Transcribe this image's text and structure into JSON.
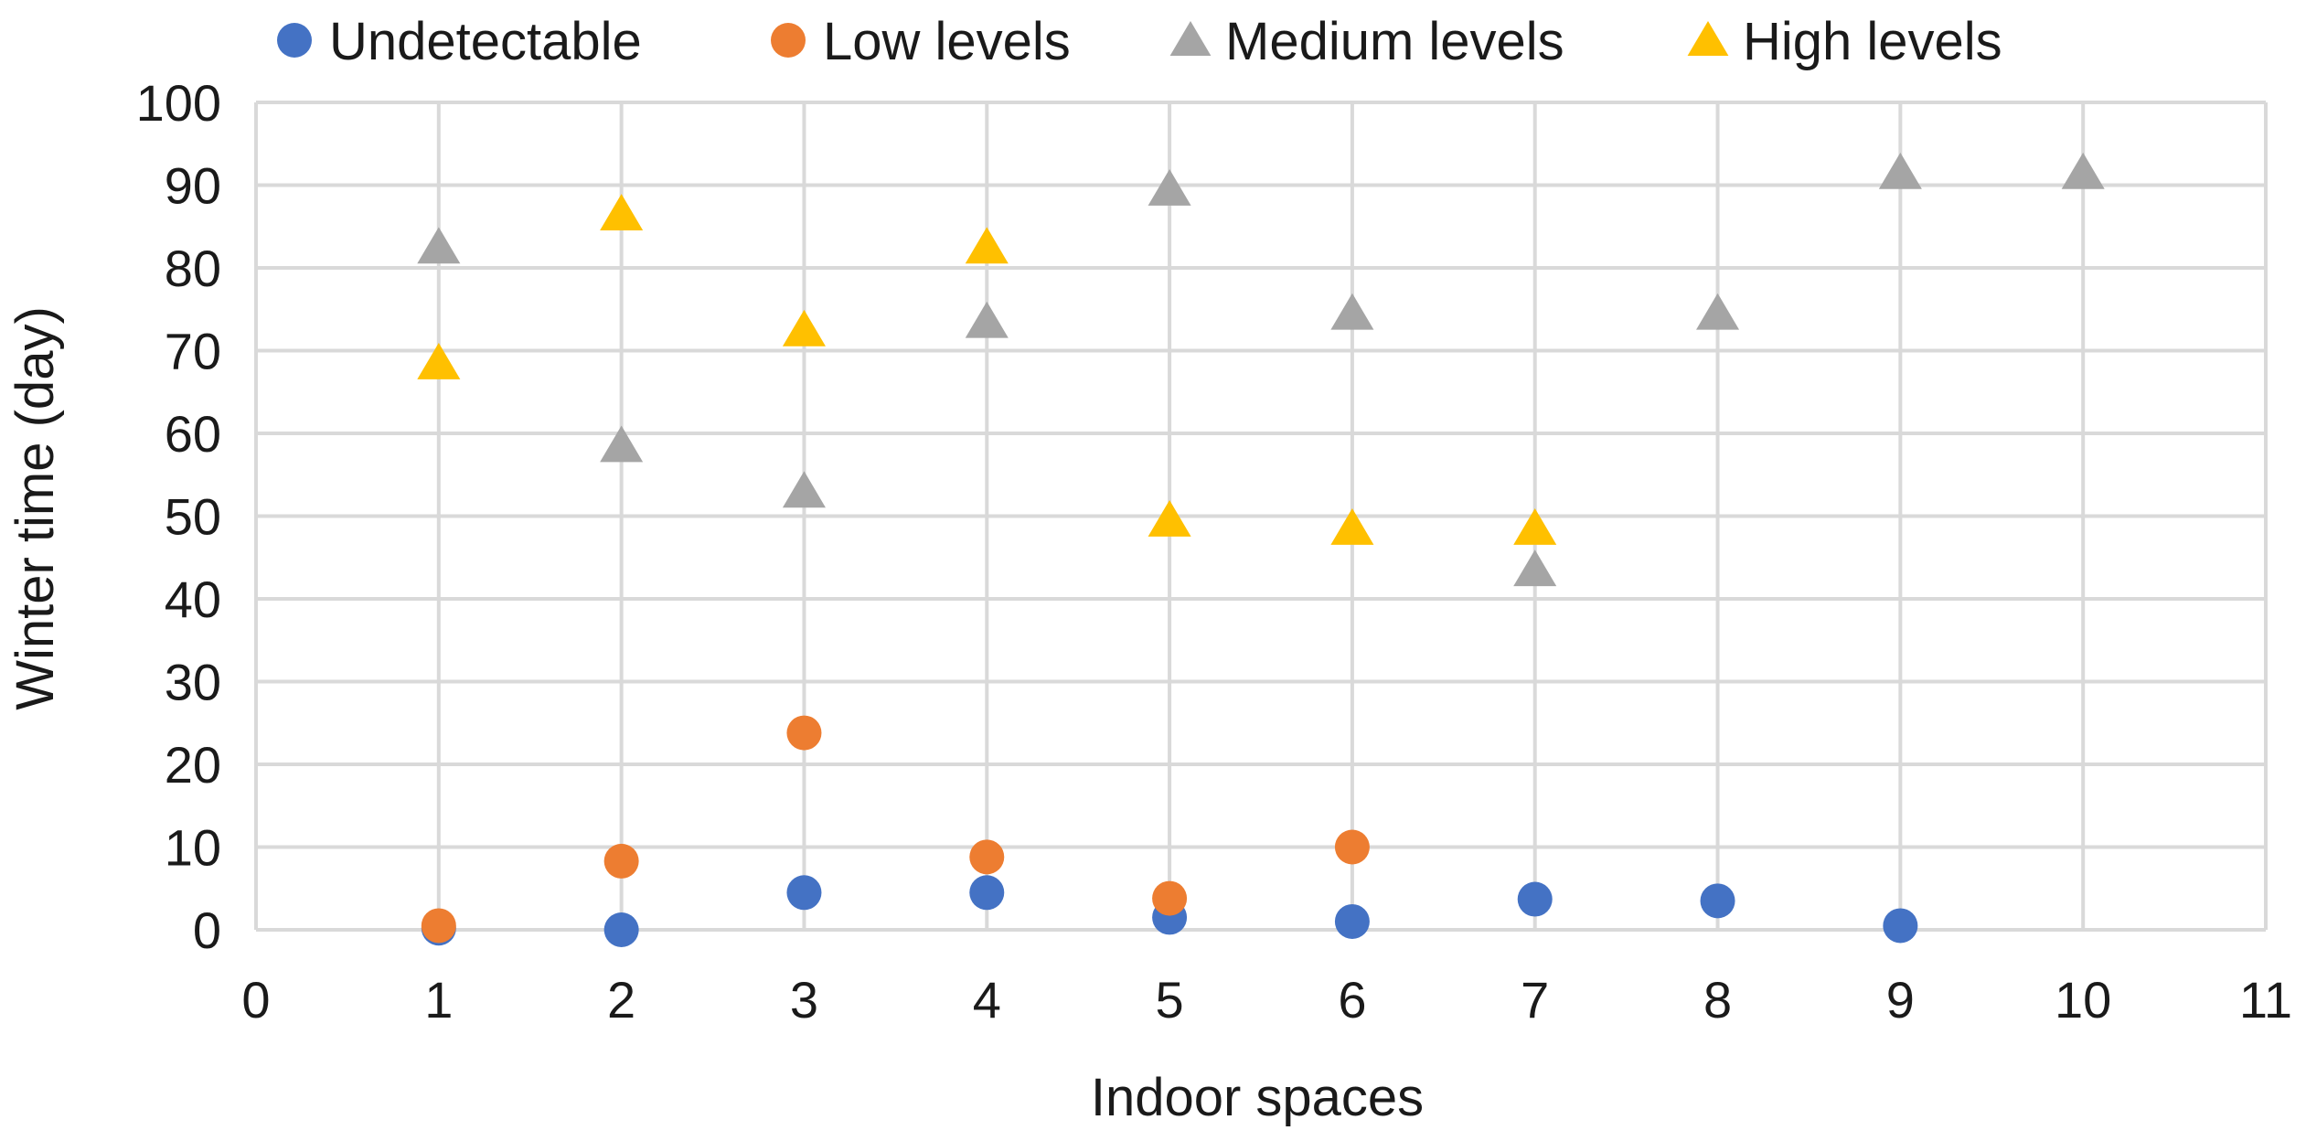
{
  "chart_data": {
    "type": "scatter",
    "title": "",
    "xlabel": "Indoor spaces",
    "ylabel": "Winter time (day)",
    "xlim": [
      0,
      11
    ],
    "ylim": [
      0,
      100
    ],
    "x_ticks": [
      0,
      1,
      2,
      3,
      4,
      5,
      6,
      7,
      8,
      9,
      10,
      11
    ],
    "y_ticks": [
      0,
      10,
      20,
      30,
      40,
      50,
      60,
      70,
      80,
      90,
      100
    ],
    "grid": "vertical and horizontal",
    "legend_position": "top",
    "series": [
      {
        "name": "Undetectable",
        "marker": "circle",
        "color": "#4472C4",
        "points": [
          [
            1,
            0.2
          ],
          [
            2,
            0
          ],
          [
            3,
            4.5
          ],
          [
            4,
            4.5
          ],
          [
            5,
            1.5
          ],
          [
            6,
            1
          ],
          [
            7,
            3.7
          ],
          [
            8,
            3.5
          ],
          [
            9,
            0.5
          ]
        ]
      },
      {
        "name": "Low levels",
        "marker": "circle",
        "color": "#ED7D31",
        "points": [
          [
            1,
            0.5
          ],
          [
            2,
            8.3
          ],
          [
            3,
            23.8
          ],
          [
            4,
            8.8
          ],
          [
            5,
            3.8
          ],
          [
            6,
            10
          ]
        ]
      },
      {
        "name": "Medium levels",
        "marker": "triangle",
        "color": "#A5A5A5",
        "points": [
          [
            1,
            82.5
          ],
          [
            2,
            58.5
          ],
          [
            3,
            53
          ],
          [
            4,
            73.5
          ],
          [
            5,
            89.5
          ],
          [
            6,
            74.5
          ],
          [
            7,
            43.5
          ],
          [
            8,
            74.5
          ],
          [
            9,
            91.5
          ],
          [
            10,
            91.5
          ]
        ]
      },
      {
        "name": "High levels",
        "marker": "triangle",
        "color": "#FFC000",
        "points": [
          [
            1,
            68.5
          ],
          [
            2,
            86.5
          ],
          [
            3,
            72.5
          ],
          [
            4,
            82.5
          ],
          [
            5,
            49.5
          ],
          [
            6,
            48.5
          ],
          [
            7,
            48.5
          ]
        ]
      }
    ]
  },
  "colors": {
    "grid": "#D9D9D9",
    "text": "#1a1a1a",
    "background": "#ffffff"
  }
}
